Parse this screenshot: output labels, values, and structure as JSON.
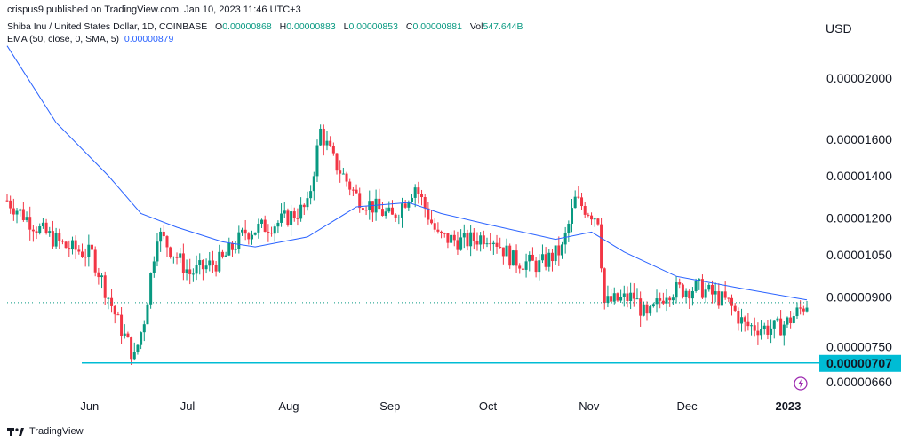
{
  "header": {
    "publish": "crispus9 published on TradingView.com, Jan 10, 2023 11:46 UTC+3",
    "symbol": "Shiba Inu / United States Dollar, 1D, COINBASE",
    "ohlc": {
      "o_label": "O",
      "o": "0.00000868",
      "h_label": "H",
      "h": "0.00000883",
      "l_label": "L",
      "l": "0.00000853",
      "c_label": "C",
      "c": "0.00000881",
      "vol_label": "Vol",
      "vol": "547.644B"
    },
    "ema_label": "EMA (50, close, 0, SMA, 5)",
    "ema_value": "0.00000879"
  },
  "currency": "USD",
  "footer": {
    "brand": "TradingView"
  },
  "colors": {
    "up": "#089981",
    "down": "#f23645",
    "ema": "#2962ff",
    "support": "#00bcd4",
    "support_label_bg": "#00bcd4"
  },
  "chart_data": {
    "type": "candlestick",
    "scale": "log",
    "x_ticks": [
      "Jun",
      "Jul",
      "Aug",
      "Sep",
      "Oct",
      "Nov",
      "Dec",
      "2023"
    ],
    "y_ticks": [
      "0.00002000",
      "0.00001600",
      "0.00001400",
      "0.00001200",
      "0.00001050",
      "0.00000900",
      "0.00000750",
      "0.00000660"
    ],
    "y_tick_values": [
      2e-05,
      1.6e-05,
      1.4e-05,
      1.2e-05,
      1.05e-05,
      9e-06,
      7.5e-06,
      6.6e-06
    ],
    "support_level": "0.00000707",
    "support_value": 7.07e-06,
    "last_close": 8.81e-06,
    "period": [
      "2022-05-10",
      "2023-01-10"
    ],
    "price_path": [
      {
        "date": "2022-05-10",
        "price": 1.28e-05
      },
      {
        "date": "2022-05-20",
        "price": 1.15e-05
      },
      {
        "date": "2022-05-28",
        "price": 1.08e-05
      },
      {
        "date": "2022-06-05",
        "price": 1.05e-05
      },
      {
        "date": "2022-06-13",
        "price": 8.2e-06
      },
      {
        "date": "2022-06-18",
        "price": 7.2e-06
      },
      {
        "date": "2022-06-21",
        "price": 8.3e-06
      },
      {
        "date": "2022-06-25",
        "price": 1.14e-05
      },
      {
        "date": "2022-07-05",
        "price": 9.8e-06
      },
      {
        "date": "2022-07-15",
        "price": 1.03e-05
      },
      {
        "date": "2022-07-22",
        "price": 1.14e-05
      },
      {
        "date": "2022-08-01",
        "price": 1.18e-05
      },
      {
        "date": "2022-08-10",
        "price": 1.25e-05
      },
      {
        "date": "2022-08-14",
        "price": 1.65e-05
      },
      {
        "date": "2022-08-18",
        "price": 1.48e-05
      },
      {
        "date": "2022-08-25",
        "price": 1.3e-05
      },
      {
        "date": "2022-09-05",
        "price": 1.2e-05
      },
      {
        "date": "2022-09-12",
        "price": 1.35e-05
      },
      {
        "date": "2022-09-19",
        "price": 1.12e-05
      },
      {
        "date": "2022-09-27",
        "price": 1.1e-05
      },
      {
        "date": "2022-10-05",
        "price": 1.13e-05
      },
      {
        "date": "2022-10-12",
        "price": 1.03e-05
      },
      {
        "date": "2022-10-20",
        "price": 1.01e-05
      },
      {
        "date": "2022-10-27",
        "price": 1.07e-05
      },
      {
        "date": "2022-10-31",
        "price": 1.28e-05
      },
      {
        "date": "2022-11-07",
        "price": 1.2e-05
      },
      {
        "date": "2022-11-09",
        "price": 8.8e-06
      },
      {
        "date": "2022-11-18",
        "price": 9e-06
      },
      {
        "date": "2022-11-22",
        "price": 8.3e-06
      },
      {
        "date": "2022-11-28",
        "price": 9.2e-06
      },
      {
        "date": "2022-12-08",
        "price": 9.3e-06
      },
      {
        "date": "2022-12-17",
        "price": 8.8e-06
      },
      {
        "date": "2022-12-22",
        "price": 8.1e-06
      },
      {
        "date": "2022-12-31",
        "price": 8e-06
      },
      {
        "date": "2023-01-04",
        "price": 8.2e-06
      },
      {
        "date": "2023-01-10",
        "price": 8.8e-06
      }
    ],
    "ema_path": [
      {
        "date": "2022-05-10",
        "price": 2.25e-05
      },
      {
        "date": "2022-05-25",
        "price": 1.7e-05
      },
      {
        "date": "2022-06-10",
        "price": 1.4e-05
      },
      {
        "date": "2022-06-20",
        "price": 1.22e-05
      },
      {
        "date": "2022-07-01",
        "price": 1.16e-05
      },
      {
        "date": "2022-07-15",
        "price": 1.1e-05
      },
      {
        "date": "2022-07-25",
        "price": 1.08e-05
      },
      {
        "date": "2022-08-10",
        "price": 1.12e-05
      },
      {
        "date": "2022-08-25",
        "price": 1.25e-05
      },
      {
        "date": "2022-09-10",
        "price": 1.27e-05
      },
      {
        "date": "2022-09-20",
        "price": 1.22e-05
      },
      {
        "date": "2022-10-05",
        "price": 1.17e-05
      },
      {
        "date": "2022-10-25",
        "price": 1.11e-05
      },
      {
        "date": "2022-11-05",
        "price": 1.14e-05
      },
      {
        "date": "2022-11-15",
        "price": 1.06e-05
      },
      {
        "date": "2022-12-01",
        "price": 9.7e-06
      },
      {
        "date": "2022-12-20",
        "price": 9.3e-06
      },
      {
        "date": "2023-01-10",
        "price": 8.9e-06
      }
    ]
  }
}
